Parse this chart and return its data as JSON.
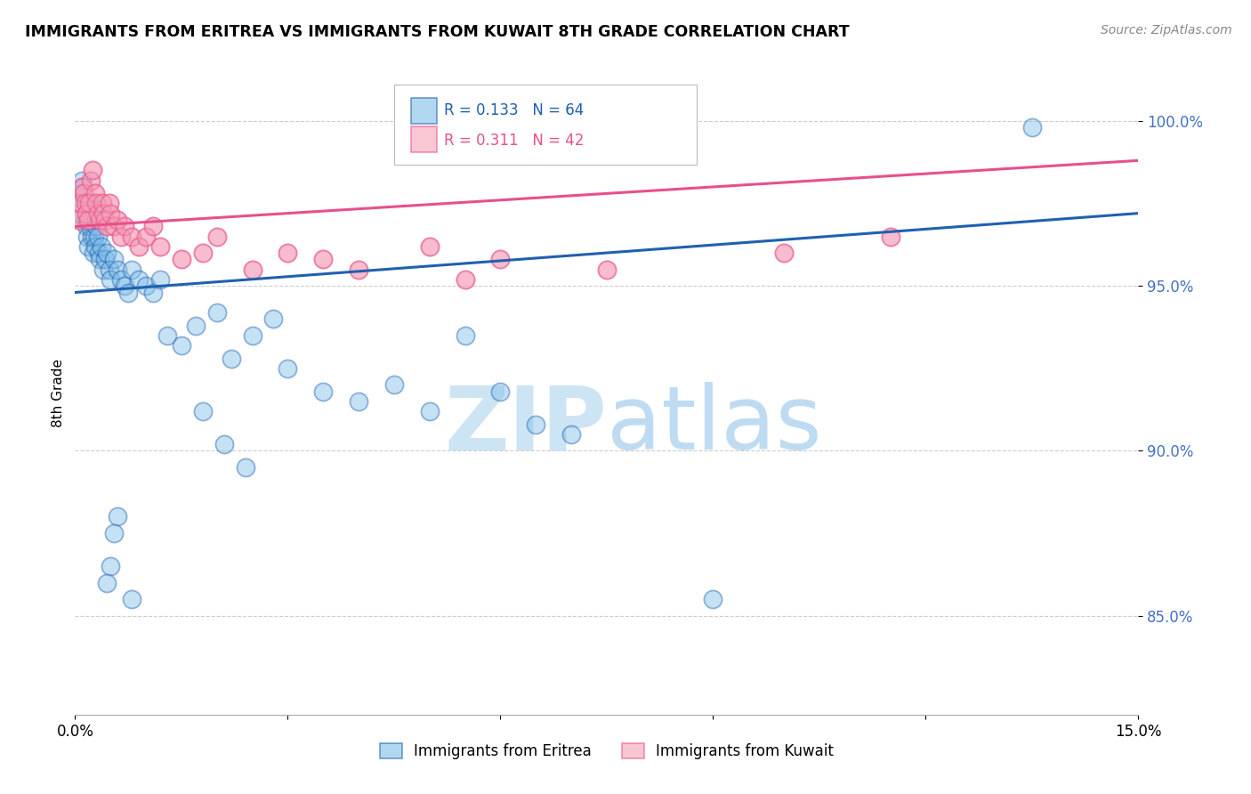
{
  "title": "IMMIGRANTS FROM ERITREA VS IMMIGRANTS FROM KUWAIT 8TH GRADE CORRELATION CHART",
  "source": "Source: ZipAtlas.com",
  "ylabel": "8th Grade",
  "xlim": [
    0.0,
    15.0
  ],
  "ylim": [
    82.0,
    101.5
  ],
  "yticks": [
    85.0,
    90.0,
    95.0,
    100.0
  ],
  "R_eritrea": 0.133,
  "N_eritrea": 64,
  "R_kuwait": 0.311,
  "N_kuwait": 42,
  "color_eritrea": "#7fbee8",
  "color_kuwait": "#f5a0b8",
  "color_eritrea_line": "#2060b0",
  "color_kuwait_line": "#e8508a",
  "watermark_color": "#cce4f4",
  "eritrea_x": [
    0.05,
    0.08,
    0.1,
    0.12,
    0.14,
    0.15,
    0.16,
    0.17,
    0.18,
    0.19,
    0.2,
    0.21,
    0.22,
    0.23,
    0.25,
    0.26,
    0.27,
    0.28,
    0.3,
    0.32,
    0.33,
    0.35,
    0.37,
    0.4,
    0.42,
    0.45,
    0.48,
    0.5,
    0.55,
    0.6,
    0.65,
    0.7,
    0.75,
    0.8,
    0.9,
    1.0,
    1.1,
    1.2,
    1.3,
    1.5,
    1.7,
    2.0,
    2.2,
    2.5,
    2.8,
    3.0,
    3.5,
    4.0,
    4.5,
    5.0,
    5.5,
    6.0,
    6.5,
    7.0,
    1.8,
    2.1,
    2.4,
    0.6,
    0.55,
    0.5,
    0.45,
    0.8,
    9.0,
    13.5
  ],
  "eritrea_y": [
    97.2,
    97.8,
    98.2,
    98.0,
    97.5,
    97.0,
    96.8,
    96.5,
    96.2,
    97.5,
    97.0,
    96.8,
    97.2,
    96.5,
    97.5,
    96.0,
    96.5,
    96.2,
    96.8,
    96.5,
    96.0,
    95.8,
    96.2,
    95.5,
    95.8,
    96.0,
    95.5,
    95.2,
    95.8,
    95.5,
    95.2,
    95.0,
    94.8,
    95.5,
    95.2,
    95.0,
    94.8,
    95.2,
    93.5,
    93.2,
    93.8,
    94.2,
    92.8,
    93.5,
    94.0,
    92.5,
    91.8,
    91.5,
    92.0,
    91.2,
    93.5,
    91.8,
    90.8,
    90.5,
    91.2,
    90.2,
    89.5,
    88.0,
    87.5,
    86.5,
    86.0,
    85.5,
    85.5,
    99.8
  ],
  "kuwait_x": [
    0.05,
    0.08,
    0.1,
    0.12,
    0.14,
    0.16,
    0.18,
    0.2,
    0.22,
    0.25,
    0.28,
    0.3,
    0.32,
    0.35,
    0.38,
    0.4,
    0.42,
    0.45,
    0.48,
    0.5,
    0.55,
    0.6,
    0.65,
    0.7,
    0.8,
    0.9,
    1.0,
    1.1,
    1.2,
    1.5,
    1.8,
    2.0,
    2.5,
    3.0,
    3.5,
    4.0,
    5.0,
    5.5,
    6.0,
    7.5,
    10.0,
    11.5
  ],
  "kuwait_y": [
    97.0,
    97.5,
    98.0,
    97.8,
    97.5,
    97.2,
    97.0,
    97.5,
    98.2,
    98.5,
    97.8,
    97.5,
    97.2,
    97.0,
    97.5,
    97.2,
    97.0,
    96.8,
    97.5,
    97.2,
    96.8,
    97.0,
    96.5,
    96.8,
    96.5,
    96.2,
    96.5,
    96.8,
    96.2,
    95.8,
    96.0,
    96.5,
    95.5,
    96.0,
    95.8,
    95.5,
    96.2,
    95.2,
    95.8,
    95.5,
    96.0,
    96.5
  ]
}
